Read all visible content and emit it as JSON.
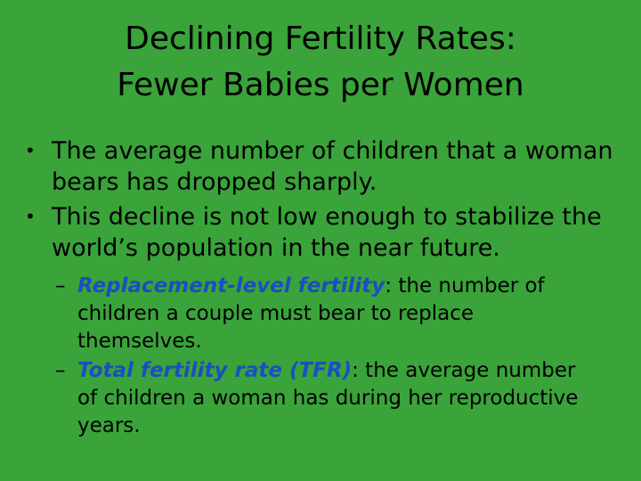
{
  "slide": {
    "title_line1": "Declining Fertility Rates:",
    "title_line2": "Fewer Babies per Women",
    "bullet_marker": "•",
    "sub_marker": "–",
    "bullets": [
      {
        "text": "The average number of children that a woman bears has dropped sharply."
      },
      {
        "text": "This decline is not low enough to stabilize the world’s population in the near future."
      }
    ],
    "sub_bullets": [
      {
        "term": "Replacement-level fertility",
        "rest": ": the number of children a couple must bear to replace themselves."
      },
      {
        "term": "Total fertility rate (TFR)",
        "rest": ": the average number of children a woman has during her reproductive years."
      }
    ]
  },
  "colors": {
    "background": "#3aa33a",
    "text": "#000000",
    "term": "#1a4fc0"
  }
}
